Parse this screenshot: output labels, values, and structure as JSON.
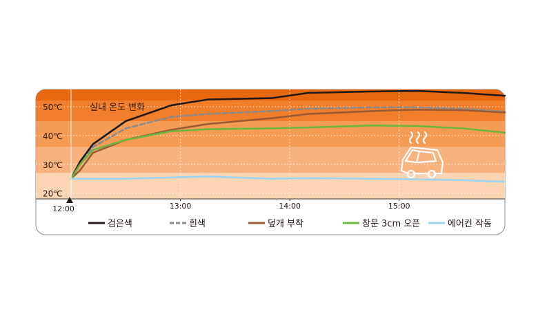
{
  "chart_data": {
    "type": "line",
    "title": "실내 온도 변화",
    "x_tick_labels": [
      "12:00",
      "13:00",
      "14:00",
      "15:00"
    ],
    "x_ticks": [
      0,
      60,
      120,
      180
    ],
    "xlim": [
      0,
      238
    ],
    "y_tick_labels": [
      "20℃",
      "30℃",
      "40℃",
      "50℃"
    ],
    "y_ticks": [
      20,
      30,
      40,
      50
    ],
    "ylim": [
      18,
      56
    ],
    "x_unit": "minutes after 12:00",
    "bands": [
      {
        "from": 18,
        "to": 27,
        "color": "#fbd4b4"
      },
      {
        "from": 27,
        "to": 36,
        "color": "#f8b27d"
      },
      {
        "from": 36,
        "to": 45,
        "color": "#f59b54"
      },
      {
        "from": 45,
        "to": 52,
        "color": "#f07e2a"
      },
      {
        "from": 52,
        "to": 56,
        "color": "#e86810"
      }
    ],
    "series": [
      {
        "name": "검은색",
        "color": "#231815",
        "dash": false,
        "x": [
          0,
          5,
          12,
          30,
          55,
          75,
          110,
          130,
          165,
          190,
          215,
          238
        ],
        "y": [
          25,
          31,
          37,
          45,
          50.5,
          52.5,
          53,
          54.8,
          55.3,
          55.5,
          54.8,
          53.8
        ]
      },
      {
        "name": "흰색",
        "color": "#8a8a8a",
        "dash": true,
        "x": [
          0,
          5,
          12,
          30,
          55,
          75,
          110,
          130,
          165,
          190,
          215,
          238
        ],
        "y": [
          25,
          30,
          36,
          42.5,
          46.5,
          47.5,
          48.5,
          49.3,
          49.8,
          49.8,
          49.3,
          48.3
        ]
      },
      {
        "name": "덮개 부착",
        "color": "#9b5a34",
        "dash": false,
        "x": [
          0,
          5,
          12,
          30,
          55,
          75,
          110,
          130,
          165,
          190,
          215,
          238
        ],
        "y": [
          25,
          28,
          34,
          38.5,
          42,
          44,
          46,
          47.5,
          48.5,
          49,
          48.8,
          48
        ]
      },
      {
        "name": "창문 3cm 오픈",
        "color": "#6db53f",
        "dash": false,
        "x": [
          0,
          5,
          12,
          30,
          55,
          75,
          110,
          130,
          165,
          190,
          215,
          238
        ],
        "y": [
          25,
          30,
          35,
          38.5,
          41.5,
          42.2,
          42.5,
          42.8,
          43.5,
          43.3,
          42.5,
          41
        ]
      },
      {
        "name": "에어컨 작동",
        "color": "#9ed4ee",
        "dash": false,
        "x": [
          0,
          30,
          75,
          110,
          130,
          165,
          190,
          215,
          238
        ],
        "y": [
          25,
          25,
          25.8,
          25,
          25.2,
          25,
          24.8,
          24.5,
          24
        ]
      }
    ],
    "legend_position": "bottom",
    "grid": "dotted horizontal and vertical lines"
  },
  "icons": {
    "car": "hot-car-icon",
    "start_marker": "start-triangle-icon"
  }
}
